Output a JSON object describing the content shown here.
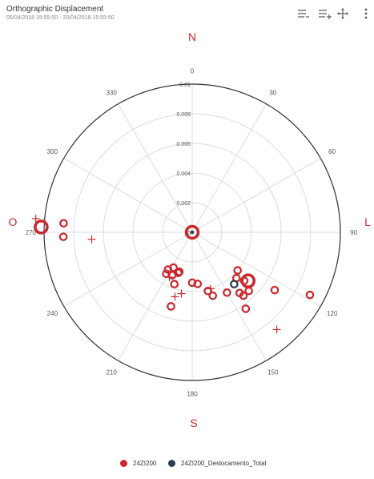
{
  "header": {
    "title": "Orthographic Displacement",
    "subtitle": "05/04/2018 15:55:50 - 20/04/2018 15:55:50",
    "tools": [
      {
        "name": "zoom-out-icon"
      },
      {
        "name": "zoom-in-icon"
      },
      {
        "name": "pan-icon"
      },
      {
        "name": "more-icon"
      }
    ]
  },
  "compass": {
    "north": "N",
    "south": "S",
    "east": "L",
    "west": "O"
  },
  "colors": {
    "series1": "#c8282e",
    "series2": "#2d3d4f",
    "grid": "#dcdcdc",
    "outer": "#333333"
  },
  "legend": [
    {
      "label": "24ZI200",
      "color": "#c8282e"
    },
    {
      "label": "24ZI200_Deslocamento_Total",
      "color": "#2d3d4f"
    }
  ],
  "chart_data": {
    "type": "scatter",
    "coordinate_system": "polar",
    "radial_axis": {
      "min": 0,
      "max": 0.01,
      "ticks": [
        "0",
        "0.002",
        "0.004",
        "0.006",
        "0.008",
        "0.01"
      ],
      "tick_values": [
        0,
        0.002,
        0.004,
        0.006,
        0.008,
        0.01
      ]
    },
    "angular_axis": {
      "direction": "clockwise",
      "zero": "north",
      "ticks": [
        "0",
        "30",
        "60",
        "90",
        "120",
        "150",
        "180",
        "210",
        "240",
        "270",
        "300",
        "330"
      ],
      "tick_values": [
        0,
        30,
        60,
        90,
        120,
        150,
        180,
        210,
        240,
        270,
        300,
        330
      ]
    },
    "grid": true,
    "legend_position": "bottom",
    "series": [
      {
        "name": "24ZI200",
        "points": [
          {
            "theta": 0,
            "r": 0.0,
            "marker": "ring-large"
          },
          {
            "theta": 272,
            "r": 0.0102,
            "marker": "ring-large"
          },
          {
            "theta": 274,
            "r": 0.0087,
            "marker": "ring"
          },
          {
            "theta": 268,
            "r": 0.0087,
            "marker": "ring"
          },
          {
            "theta": 266,
            "r": 0.0068,
            "marker": "plus"
          },
          {
            "theta": 275,
            "r": 0.0106,
            "marker": "plus"
          },
          {
            "theta": 198,
            "r": 0.0028,
            "marker": "ring"
          },
          {
            "theta": 199,
            "r": 0.0029,
            "marker": "ring"
          },
          {
            "theta": 208,
            "r": 0.0027,
            "marker": "ring"
          },
          {
            "theta": 205,
            "r": 0.0032,
            "marker": "ring"
          },
          {
            "theta": 213,
            "r": 0.003,
            "marker": "ring"
          },
          {
            "theta": 212,
            "r": 0.0033,
            "marker": "ring"
          },
          {
            "theta": 199,
            "r": 0.0037,
            "marker": "ring"
          },
          {
            "theta": 207,
            "r": 0.0034,
            "marker": "plus"
          },
          {
            "theta": 195,
            "r": 0.0045,
            "marker": "plus"
          },
          {
            "theta": 190,
            "r": 0.0042,
            "marker": "plus"
          },
          {
            "theta": 196,
            "r": 0.0052,
            "marker": "ring"
          },
          {
            "theta": 180,
            "r": 0.0034,
            "marker": "ring"
          },
          {
            "theta": 174,
            "r": 0.0035,
            "marker": "ring"
          },
          {
            "theta": 165,
            "r": 0.0041,
            "marker": "ring"
          },
          {
            "theta": 162,
            "r": 0.0045,
            "marker": "ring"
          },
          {
            "theta": 162,
            "r": 0.004,
            "marker": "plus"
          },
          {
            "theta": 150,
            "r": 0.0047,
            "marker": "ring"
          },
          {
            "theta": 145,
            "r": 0.0063,
            "marker": "ring"
          },
          {
            "theta": 142,
            "r": 0.0052,
            "marker": "ring"
          },
          {
            "theta": 141,
            "r": 0.0055,
            "marker": "ring"
          },
          {
            "theta": 136,
            "r": 0.0055,
            "marker": "ring"
          },
          {
            "theta": 136,
            "r": 0.0043,
            "marker": "ring"
          },
          {
            "theta": 133,
            "r": 0.0048,
            "marker": "ring"
          },
          {
            "theta": 131,
            "r": 0.005,
            "marker": "ring-large"
          },
          {
            "theta": 125,
            "r": 0.0068,
            "marker": "ring"
          },
          {
            "theta": 118,
            "r": 0.009,
            "marker": "ring"
          },
          {
            "theta": 139,
            "r": 0.0087,
            "marker": "plus"
          },
          {
            "theta": 130,
            "r": 0.004,
            "marker": "ring"
          }
        ]
      },
      {
        "name": "24ZI200_Deslocamento_Total",
        "points": [
          {
            "theta": 0,
            "r": 0.0,
            "marker": "dot"
          },
          {
            "theta": 141,
            "r": 0.0045,
            "marker": "ring"
          }
        ]
      }
    ]
  }
}
